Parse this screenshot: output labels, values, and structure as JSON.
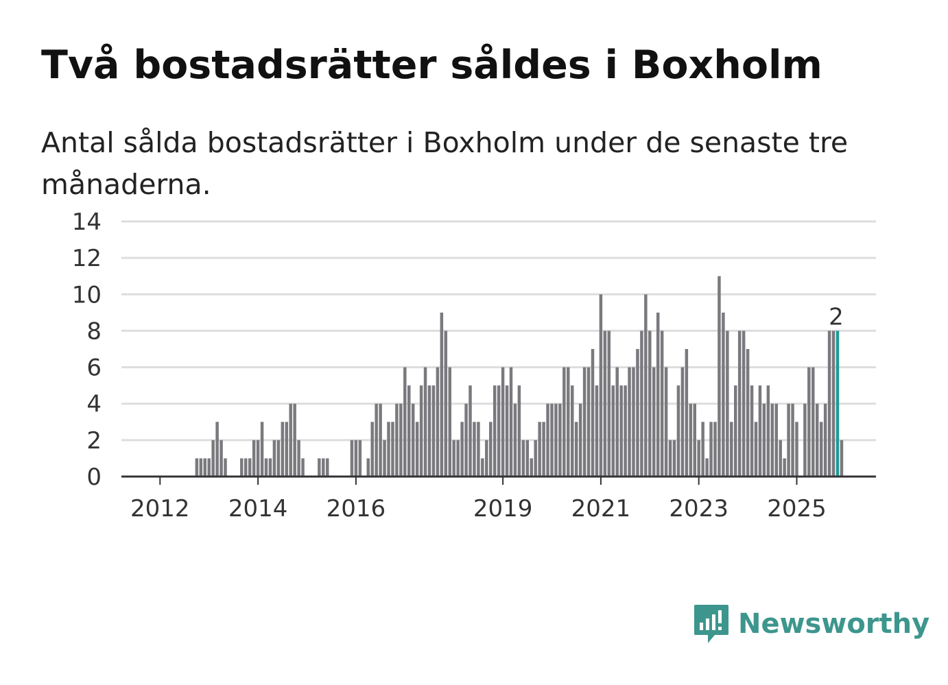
{
  "chart_data": {
    "type": "bar",
    "title": "Två bostadsrätter såldes i Boxholm",
    "subtitle": "Antal sålda bostadsrätter i Boxholm under de senaste tre månaderna.",
    "xlabel": "",
    "ylabel": "",
    "ylim": [
      0,
      14
    ],
    "y_ticks": [
      0,
      2,
      4,
      6,
      8,
      10,
      12,
      14
    ],
    "x_ticks": [
      {
        "label": "2012",
        "index": 9
      },
      {
        "label": "2014",
        "index": 33
      },
      {
        "label": "2016",
        "index": 57
      },
      {
        "label": "2019",
        "index": 93
      },
      {
        "label": "2021",
        "index": 117
      },
      {
        "label": "2023",
        "index": 141
      },
      {
        "label": "2025",
        "index": 165
      }
    ],
    "grid": true,
    "values": [
      0,
      0,
      0,
      0,
      0,
      0,
      0,
      0,
      0,
      0,
      0,
      0,
      0,
      0,
      0,
      0,
      0,
      0,
      1,
      1,
      1,
      1,
      2,
      3,
      2,
      1,
      0,
      0,
      0,
      1,
      1,
      1,
      2,
      2,
      3,
      1,
      1,
      2,
      2,
      3,
      3,
      4,
      4,
      2,
      1,
      0,
      0,
      0,
      1,
      1,
      1,
      0,
      0,
      0,
      0,
      0,
      2,
      2,
      2,
      0,
      1,
      3,
      4,
      4,
      2,
      3,
      3,
      4,
      4,
      6,
      5,
      4,
      3,
      5,
      6,
      5,
      5,
      6,
      9,
      8,
      6,
      2,
      2,
      3,
      4,
      5,
      3,
      3,
      1,
      2,
      3,
      5,
      5,
      6,
      5,
      6,
      4,
      5,
      2,
      2,
      1,
      2,
      3,
      3,
      4,
      4,
      4,
      4,
      6,
      6,
      5,
      3,
      4,
      6,
      6,
      7,
      5,
      10,
      8,
      8,
      5,
      6,
      5,
      5,
      6,
      6,
      7,
      8,
      10,
      8,
      6,
      9,
      8,
      6,
      2,
      2,
      5,
      6,
      7,
      4,
      4,
      2,
      3,
      1,
      3,
      3,
      11,
      9,
      8,
      3,
      5,
      8,
      8,
      7,
      5,
      3,
      5,
      4,
      5,
      4,
      4,
      2,
      1,
      4,
      4,
      3,
      0,
      4,
      6,
      6,
      4,
      3,
      4,
      8,
      8,
      8,
      2
    ],
    "highlight_index": 175,
    "highlight_label": "2",
    "colors": {
      "bar": "#7a797e",
      "highlight": "#1f9a96",
      "grid": "#dddddd",
      "axis": "#333333"
    }
  },
  "logo": {
    "text": "Newsworthy",
    "icon": "bar-chart-speech-bubble-icon",
    "color": "#3d968d"
  }
}
